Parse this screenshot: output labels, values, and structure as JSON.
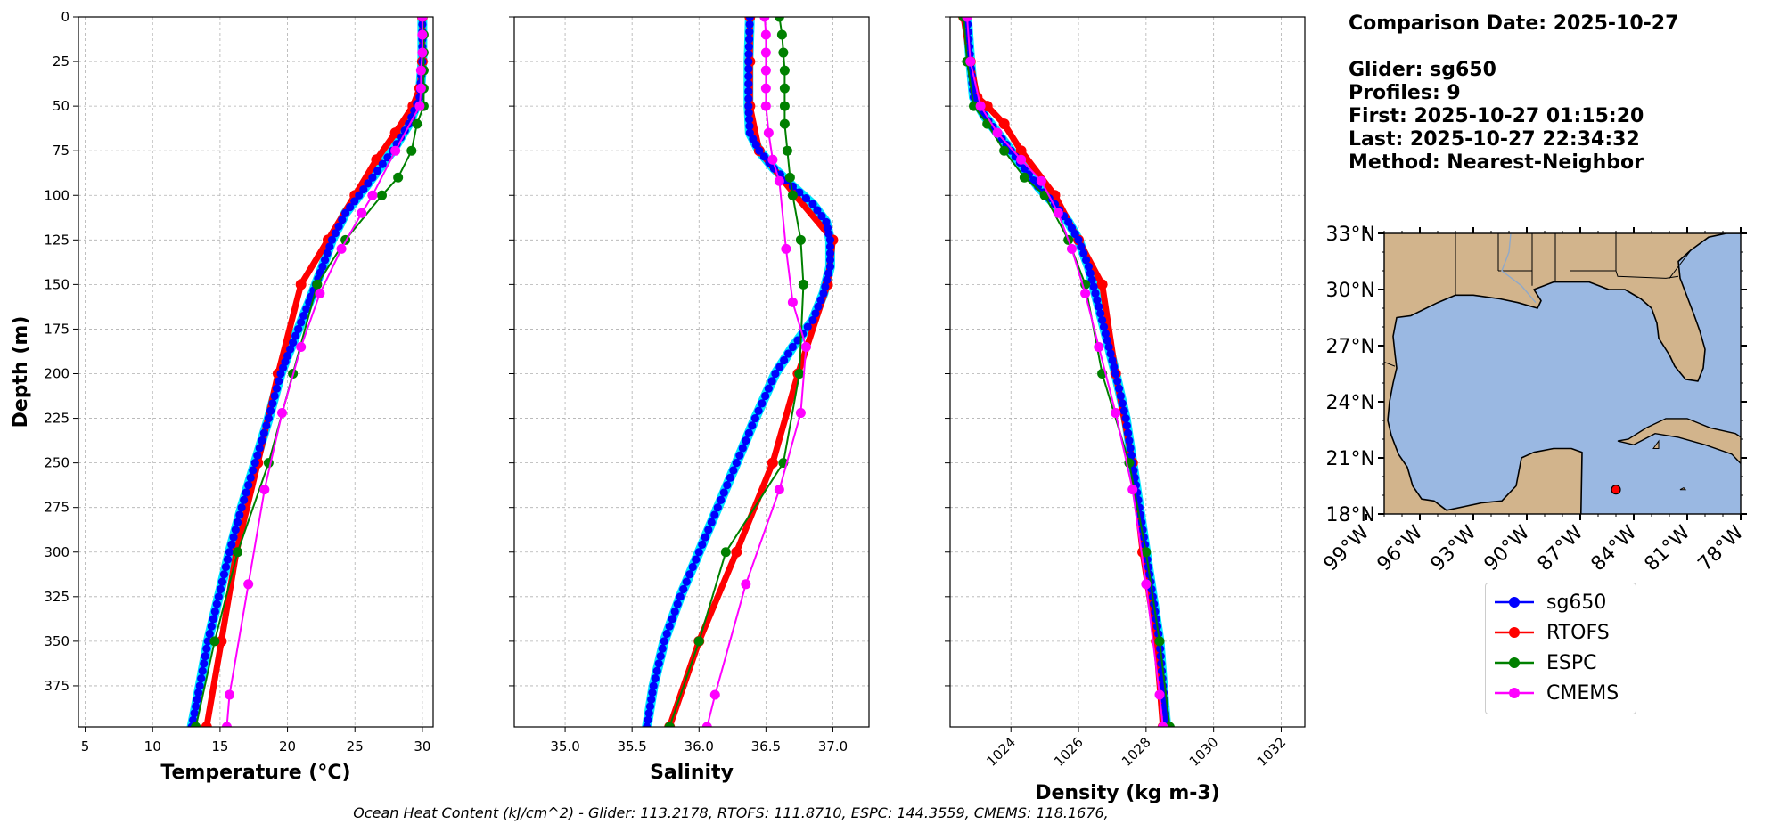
{
  "chart_data": [
    {
      "type": "line",
      "xlabel": "Temperature (°C)",
      "ylabel": "Depth (m)",
      "xlim": [
        4.5,
        30.8
      ],
      "ylim": [
        398,
        0
      ],
      "xticks": [
        5,
        10,
        15,
        20,
        25,
        30
      ],
      "yticks": [
        0,
        25,
        50,
        75,
        100,
        125,
        150,
        175,
        200,
        225,
        250,
        275,
        300,
        325,
        350,
        375
      ],
      "grid": true,
      "series": [
        {
          "name": "sg650",
          "depth": [
            0,
            25,
            45,
            60,
            75,
            90,
            100,
            110,
            125,
            140,
            150,
            160,
            175,
            190,
            200,
            225,
            250,
            275,
            300,
            325,
            350,
            375,
            398
          ],
          "values": [
            30.0,
            30.0,
            29.8,
            29.0,
            27.8,
            26.3,
            25.3,
            24.3,
            23.3,
            22.6,
            22.1,
            21.6,
            20.8,
            20.0,
            19.5,
            18.6,
            17.6,
            16.6,
            15.7,
            14.9,
            14.1,
            13.5,
            12.9
          ]
        },
        {
          "name": "RTOFS",
          "depth": [
            0,
            25,
            40,
            50,
            65,
            80,
            100,
            125,
            150,
            200,
            250,
            300,
            350,
            398
          ],
          "values": [
            30.0,
            30.0,
            29.8,
            29.3,
            28.0,
            26.6,
            25.0,
            23.0,
            21.0,
            19.3,
            17.8,
            16.2,
            15.1,
            14.0
          ]
        },
        {
          "name": "ESPC",
          "depth": [
            0,
            10,
            20,
            30,
            40,
            50,
            60,
            75,
            90,
            100,
            125,
            150,
            200,
            250,
            300,
            350,
            398
          ],
          "values": [
            30.0,
            30.1,
            30.1,
            30.1,
            30.1,
            30.1,
            29.6,
            29.2,
            28.2,
            27.0,
            24.3,
            22.2,
            20.4,
            18.6,
            16.3,
            14.6,
            13.2
          ]
        },
        {
          "name": "CMEMS",
          "depth": [
            0,
            10,
            20,
            30,
            40,
            50,
            75,
            100,
            110,
            130,
            155,
            185,
            222,
            265,
            318,
            380,
            398
          ],
          "values": [
            30.0,
            30.0,
            30.0,
            29.9,
            29.9,
            29.8,
            28.0,
            26.3,
            25.5,
            24.0,
            22.4,
            21.0,
            19.6,
            18.3,
            17.1,
            15.7,
            15.5
          ]
        }
      ]
    },
    {
      "type": "line",
      "xlabel": "Salinity",
      "ylabel": "",
      "xlim": [
        34.62,
        37.27
      ],
      "ylim": [
        398,
        0
      ],
      "xticks": [
        35.0,
        35.5,
        36.0,
        36.5,
        37.0
      ],
      "yticks": [
        0,
        25,
        50,
        75,
        100,
        125,
        150,
        175,
        200,
        225,
        250,
        275,
        300,
        325,
        350,
        375
      ],
      "grid": true,
      "series": [
        {
          "name": "sg650",
          "depth": [
            0,
            25,
            50,
            65,
            75,
            85,
            95,
            105,
            115,
            125,
            140,
            155,
            170,
            185,
            200,
            225,
            250,
            275,
            300,
            325,
            350,
            375,
            398
          ],
          "values": [
            36.38,
            36.37,
            36.37,
            36.38,
            36.45,
            36.56,
            36.7,
            36.85,
            36.95,
            36.98,
            36.98,
            36.93,
            36.85,
            36.7,
            36.57,
            36.42,
            36.28,
            36.14,
            36.0,
            35.86,
            35.74,
            35.66,
            35.61
          ]
        },
        {
          "name": "RTOFS",
          "depth": [
            0,
            25,
            50,
            75,
            100,
            125,
            150,
            200,
            250,
            300,
            350,
            398
          ],
          "values": [
            36.38,
            36.38,
            36.38,
            36.45,
            36.72,
            37.0,
            36.96,
            36.74,
            36.55,
            36.28,
            36.0,
            35.78
          ]
        },
        {
          "name": "ESPC",
          "depth": [
            0,
            10,
            20,
            30,
            40,
            50,
            60,
            75,
            90,
            100,
            125,
            150,
            200,
            250,
            300,
            350,
            398
          ],
          "values": [
            36.6,
            36.62,
            36.63,
            36.64,
            36.64,
            36.64,
            36.64,
            36.66,
            36.68,
            36.7,
            36.76,
            36.78,
            36.75,
            36.63,
            36.2,
            36.0,
            35.78
          ]
        },
        {
          "name": "CMEMS",
          "depth": [
            0,
            10,
            20,
            30,
            40,
            50,
            65,
            80,
            92,
            130,
            160,
            185,
            222,
            265,
            318,
            380,
            398
          ],
          "values": [
            36.49,
            36.5,
            36.5,
            36.5,
            36.5,
            36.5,
            36.52,
            36.55,
            36.6,
            36.65,
            36.7,
            36.8,
            36.76,
            36.6,
            36.35,
            36.12,
            36.06
          ]
        }
      ]
    },
    {
      "type": "line",
      "xlabel": "Density (kg m-3)",
      "ylabel": "",
      "xlim": [
        1022.2,
        1032.7
      ],
      "ylim": [
        398,
        0
      ],
      "xticks": [
        1024,
        1026,
        1028,
        1030,
        1032
      ],
      "yticks": [
        0,
        25,
        50,
        75,
        100,
        125,
        150,
        175,
        200,
        225,
        250,
        275,
        300,
        325,
        350,
        375
      ],
      "grid": true,
      "series": [
        {
          "name": "sg650",
          "depth": [
            0,
            25,
            45,
            55,
            65,
            75,
            85,
            95,
            105,
            115,
            125,
            140,
            155,
            170,
            185,
            200,
            225,
            250,
            275,
            300,
            325,
            350,
            375,
            398
          ],
          "values": [
            1022.7,
            1022.8,
            1022.9,
            1023.2,
            1023.6,
            1024.0,
            1024.4,
            1024.8,
            1025.3,
            1025.7,
            1026.0,
            1026.3,
            1026.5,
            1026.7,
            1026.9,
            1027.1,
            1027.4,
            1027.6,
            1027.8,
            1028.0,
            1028.2,
            1028.4,
            1028.5,
            1028.6
          ]
        },
        {
          "name": "RTOFS",
          "depth": [
            0,
            25,
            45,
            50,
            60,
            75,
            100,
            125,
            150,
            200,
            250,
            300,
            350,
            398
          ],
          "values": [
            1022.6,
            1022.8,
            1023.0,
            1023.3,
            1023.8,
            1024.3,
            1025.3,
            1026.0,
            1026.7,
            1027.1,
            1027.6,
            1027.9,
            1028.3,
            1028.5
          ]
        },
        {
          "name": "ESPC",
          "depth": [
            0,
            25,
            50,
            60,
            75,
            90,
            100,
            125,
            150,
            200,
            250,
            300,
            350,
            398
          ],
          "values": [
            1022.6,
            1022.7,
            1022.9,
            1023.3,
            1023.8,
            1024.4,
            1025.0,
            1025.7,
            1026.2,
            1026.7,
            1027.5,
            1028.0,
            1028.4,
            1028.7
          ]
        },
        {
          "name": "CMEMS",
          "depth": [
            0,
            25,
            50,
            65,
            80,
            92,
            110,
            130,
            155,
            185,
            222,
            265,
            318,
            380,
            398
          ],
          "values": [
            1022.7,
            1022.8,
            1023.1,
            1023.6,
            1024.3,
            1024.9,
            1025.4,
            1025.8,
            1026.2,
            1026.6,
            1027.1,
            1027.6,
            1028.0,
            1028.4,
            1028.5
          ]
        }
      ]
    },
    {
      "type": "map",
      "xlim": [
        -98,
        -78
      ],
      "ylim": [
        18,
        33
      ],
      "xticks": [
        "99°W",
        "96°W",
        "93°W",
        "90°W",
        "87°W",
        "84°W",
        "81°W",
        "78°W"
      ],
      "yticks": [
        "18°N",
        "21°N",
        "24°N",
        "27°N",
        "30°N",
        "33°N"
      ],
      "yticks_values": [
        18,
        21,
        24,
        27,
        30,
        33
      ],
      "xticks_values": [
        -99,
        -96,
        -93,
        -90,
        -87,
        -84,
        -81,
        -78
      ],
      "glider_position": {
        "lon": -85.0,
        "lat": 19.3
      },
      "land_color": "#d2b48c",
      "ocean_color": "#9ab8e2"
    }
  ],
  "legend": {
    "placement": "bottom-right",
    "entries": [
      {
        "name": "sg650",
        "color": "#0000ff"
      },
      {
        "name": "RTOFS",
        "color": "#ff0000"
      },
      {
        "name": "ESPC",
        "color": "#008000"
      },
      {
        "name": "CMEMS",
        "color": "#ff00ff"
      }
    ]
  },
  "info": {
    "comparison_date": "Comparison Date: 2025-10-27",
    "glider": "Glider: sg650",
    "profiles": "Profiles: 9",
    "first": "First: 2025-10-27 01:15:20",
    "last": "Last: 2025-10-27 22:34:32",
    "method": "Method: Nearest-Neighbor"
  },
  "footer": "Ocean Heat Content (kJ/cm^2) - Glider: 113.2178,  RTOFS: 111.8710,  ESPC: 144.3559,  CMEMS: 118.1676,",
  "colors": {
    "sg650": "#0000ff",
    "sg650_halo": "#00e5ff",
    "RTOFS": "#ff0000",
    "ESPC": "#008000",
    "CMEMS": "#ff00ff",
    "grid": "#b0b0b0"
  }
}
